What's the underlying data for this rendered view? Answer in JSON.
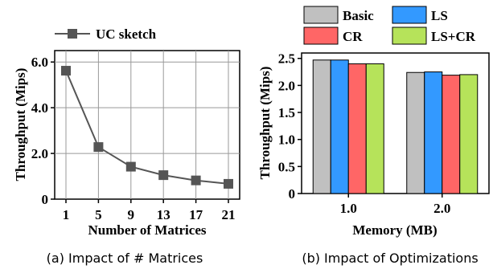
{
  "colors": {
    "line": "#555555",
    "grid": "#999999",
    "axis": "#000000",
    "basic": "#c0c0c0",
    "ls": "#3399ff",
    "cr": "#ff6666",
    "lscr": "#b6e35a"
  },
  "chart_data": [
    {
      "type": "line",
      "caption": "(a) Impact of # Matrices",
      "xlabel": "Number of Matrices",
      "ylabel": "Throughput (Mips)",
      "x": [
        1,
        5,
        9,
        13,
        17,
        21
      ],
      "xticks": [
        "1",
        "5",
        "9",
        "13",
        "17",
        "21"
      ],
      "ylim": [
        0,
        6.5
      ],
      "yticks": [
        "0",
        "2.0",
        "4.0",
        "6.0"
      ],
      "grid": true,
      "legend_position": "top",
      "series": [
        {
          "name": "UC sketch",
          "marker": "square",
          "values": [
            5.62,
            2.28,
            1.42,
            1.05,
            0.82,
            0.67
          ]
        }
      ]
    },
    {
      "type": "bar",
      "caption": "(b) Impact of Optimizations",
      "xlabel": "Memory (MB)",
      "ylabel": "Throughput (Mips)",
      "categories": [
        "1.0",
        "2.0"
      ],
      "ylim": [
        0,
        2.6
      ],
      "yticks": [
        "0",
        "0.5",
        "1.0",
        "1.5",
        "2.0",
        "2.5"
      ],
      "grid": false,
      "legend_position": "top",
      "series": [
        {
          "name": "Basic",
          "values": [
            2.47,
            2.24
          ]
        },
        {
          "name": "LS",
          "values": [
            2.47,
            2.25
          ]
        },
        {
          "name": "CR",
          "values": [
            2.4,
            2.19
          ]
        },
        {
          "name": "LS+CR",
          "values": [
            2.4,
            2.2
          ]
        }
      ]
    }
  ]
}
